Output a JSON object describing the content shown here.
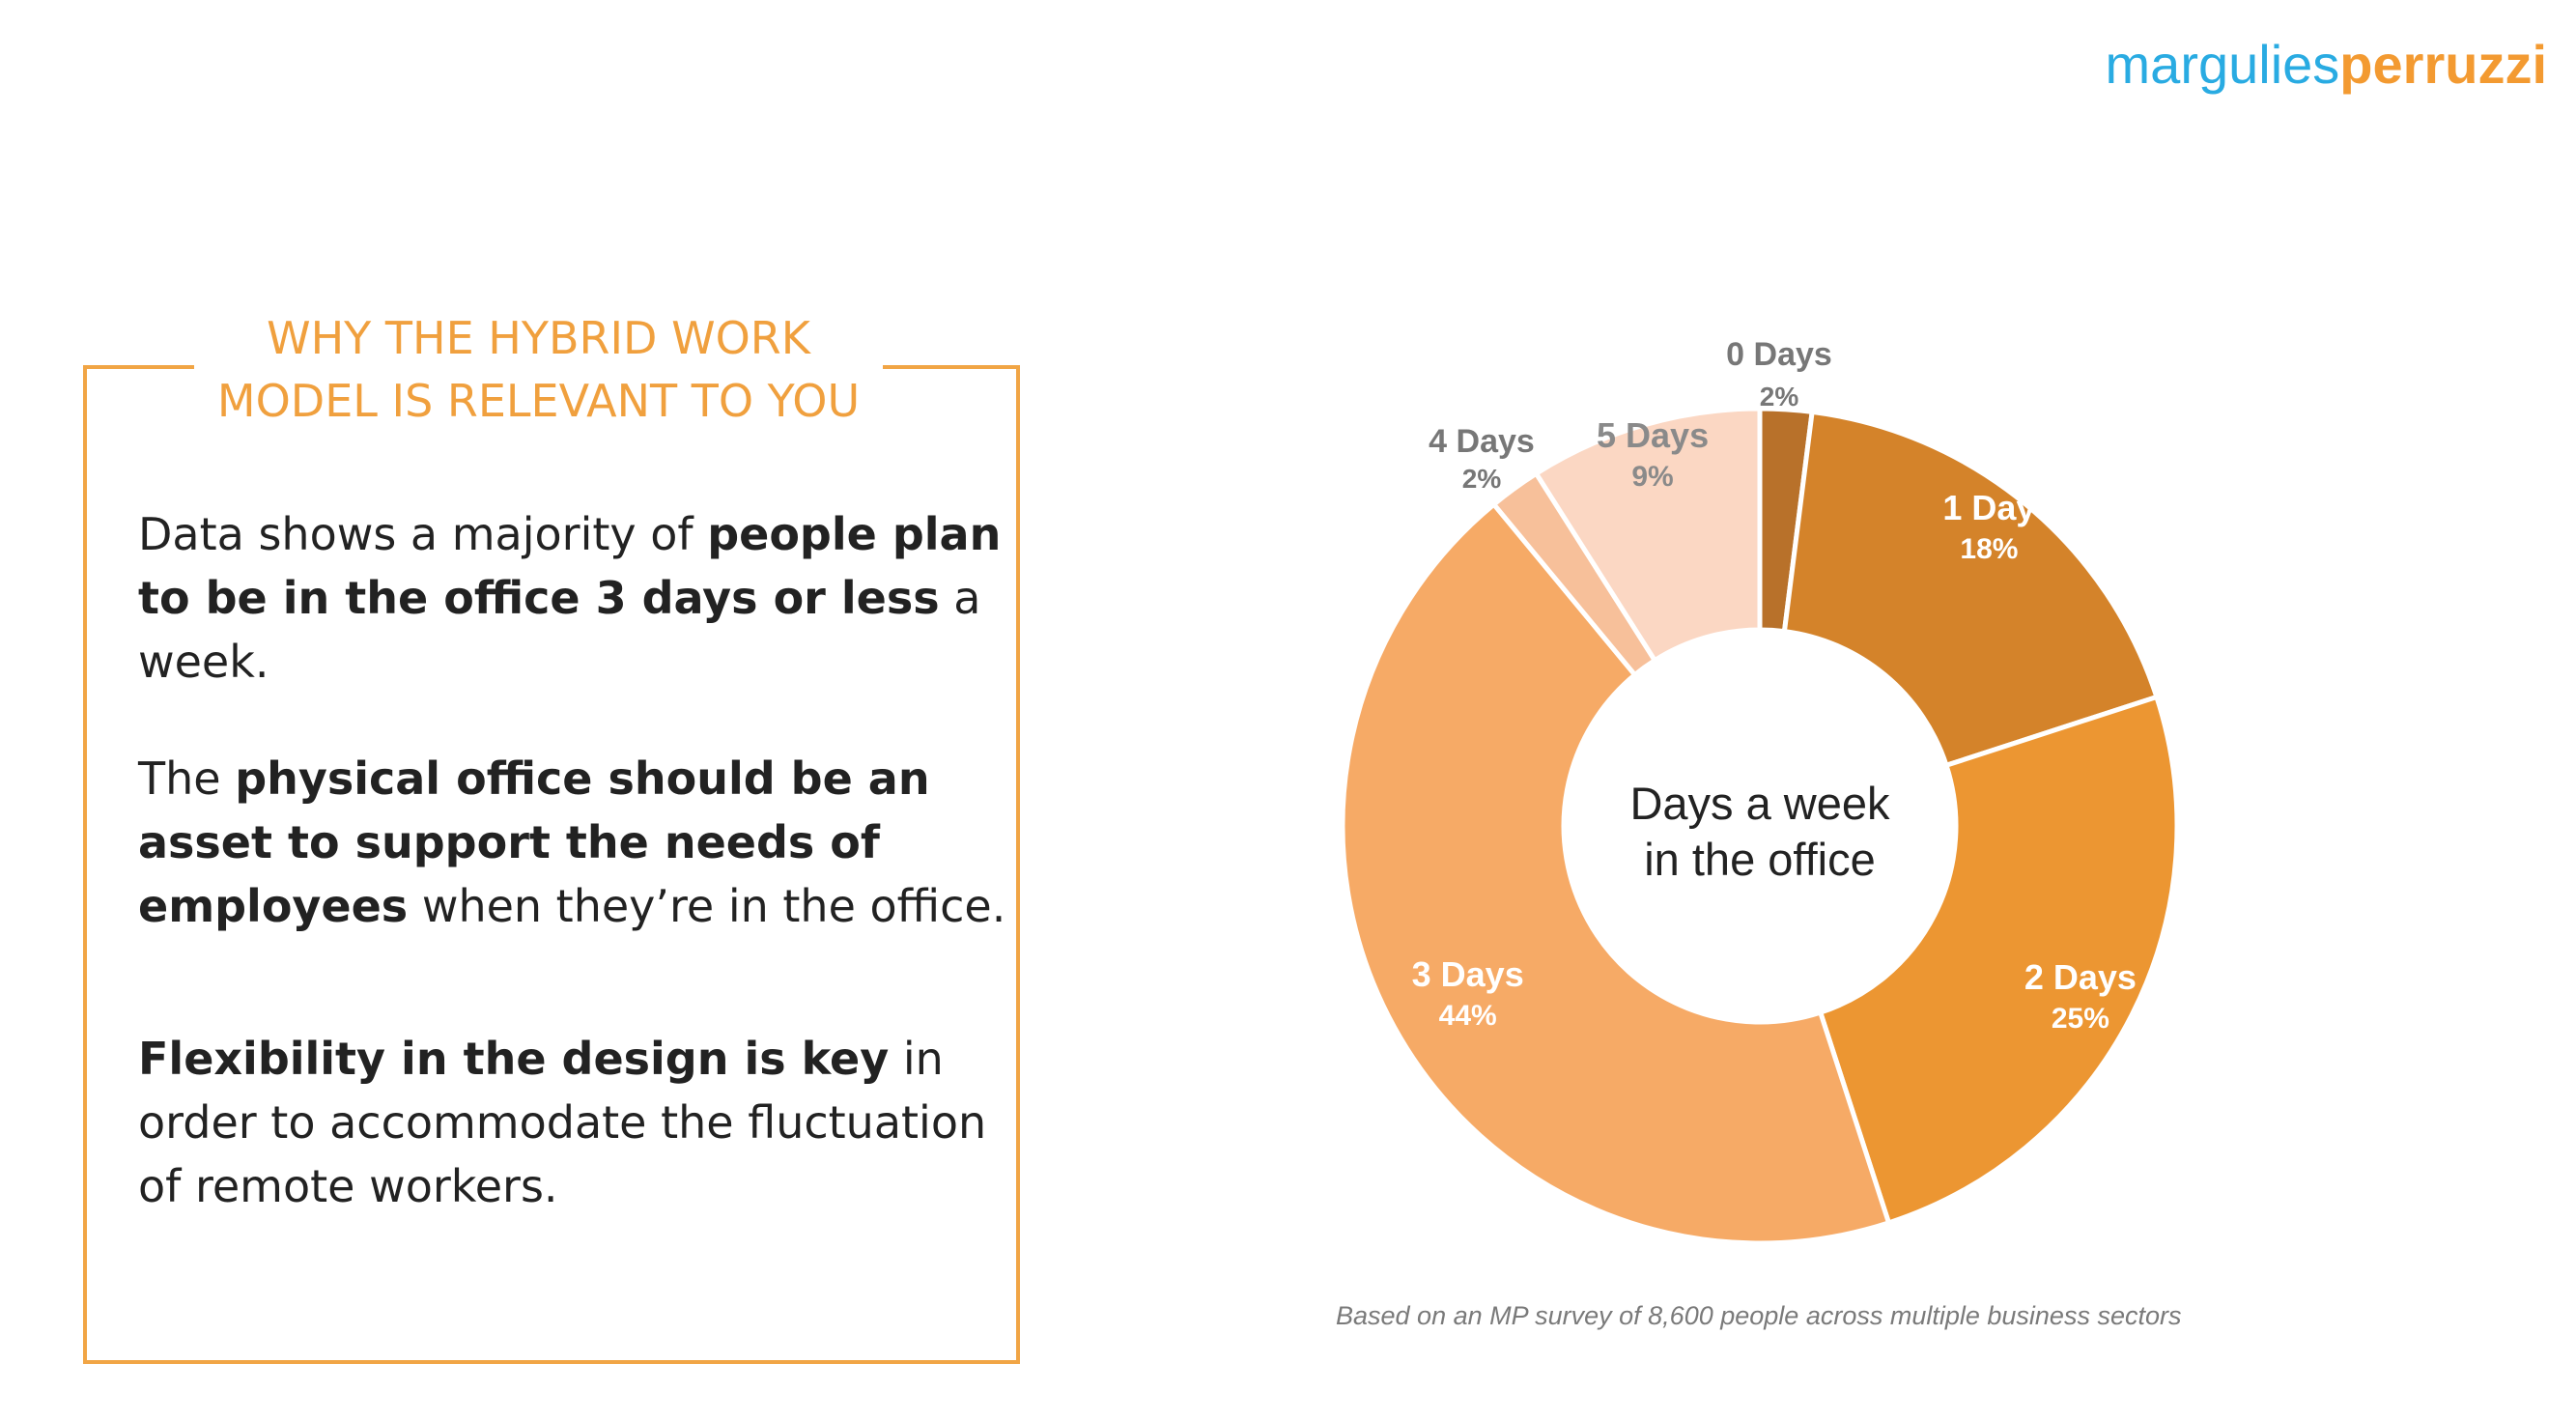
{
  "logo": {
    "part1": "margulies",
    "part2": "perruzzi"
  },
  "box": {
    "title_line1": "WHY THE HYBRID WORK",
    "title_line2": "MODEL IS RELEVANT TO YOU",
    "para1": {
      "t1": "Data shows a majority of ",
      "b1": "people plan to be in the office 3 days or less",
      "t2": " a week."
    },
    "para2": {
      "t1": "The ",
      "b1": "physical office should be an asset to support the needs of employees",
      "t2": " when they’re in the office."
    },
    "para3": {
      "b1": "Flexibility in the design is key",
      "t1": " in order to accommodate the fluctuation of remote workers."
    }
  },
  "chart_data": {
    "type": "pie",
    "center_label_line1": "Days a week",
    "center_label_line2": "in the office",
    "slices": [
      {
        "label": "0 Days",
        "value": 2,
        "value_label": "2%",
        "color": "#b8712a",
        "label_color": "#777777",
        "label_position": "outside"
      },
      {
        "label": "1 Day",
        "value": 18,
        "value_label": "18%",
        "color": "#d4832a",
        "label_color": "#ffffff",
        "label_position": "inside"
      },
      {
        "label": "2 Days",
        "value": 25,
        "value_label": "25%",
        "color": "#ec9632",
        "label_color": "#ffffff",
        "label_position": "inside"
      },
      {
        "label": "3 Days",
        "value": 44,
        "value_label": "44%",
        "color": "#f6aa66",
        "label_color": "#ffffff",
        "label_position": "inside"
      },
      {
        "label": "4 Days",
        "value": 2,
        "value_label": "2%",
        "color": "#f7c09a",
        "label_color": "#777777",
        "label_position": "outside"
      },
      {
        "label": "5 Days",
        "value": 9,
        "value_label": "9%",
        "color": "#fbd7c3",
        "label_color": "#8a8a8a",
        "label_position": "inside"
      }
    ],
    "footnote": "Based on an MP survey of 8,600 people across multiple business sectors"
  }
}
